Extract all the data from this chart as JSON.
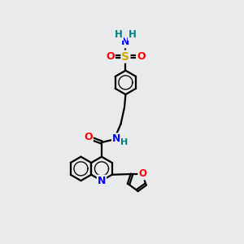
{
  "background_color": "#e8eaec",
  "atom_colors": {
    "C": "#000000",
    "N": "#0000ff",
    "O": "#ff0000",
    "S": "#ccaa00",
    "H": "#008080"
  },
  "bond_color": "#000000",
  "bond_width": 1.6,
  "figsize": [
    3.0,
    3.0
  ],
  "dpi": 100,
  "xlim": [
    0,
    10
  ],
  "ylim": [
    0,
    10
  ]
}
